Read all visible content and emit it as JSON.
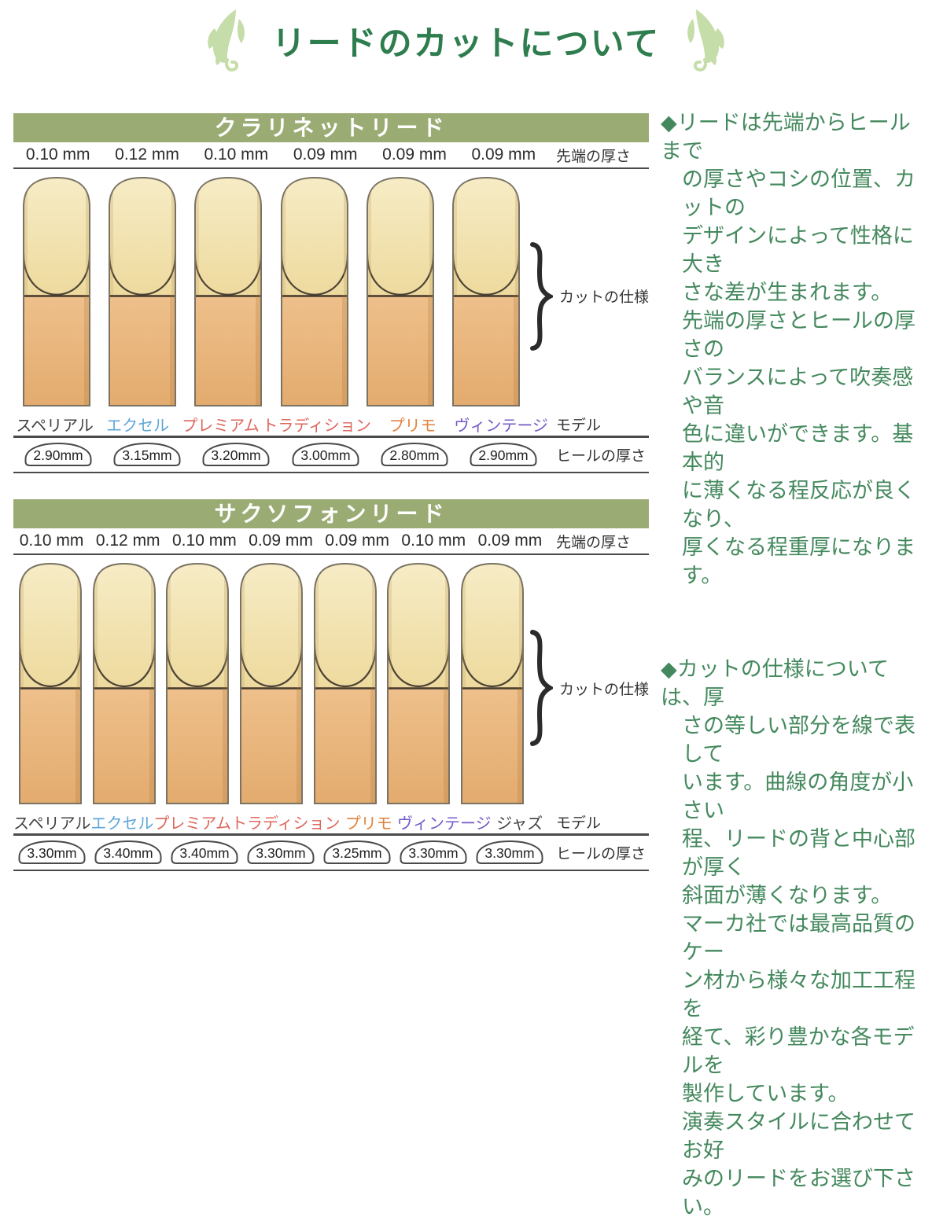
{
  "title": {
    "text": "リードのカットについて"
  },
  "colors": {
    "title_green": "#2e7d4f",
    "leaf_green": "#c5dda8",
    "header_bg": "#9aac73",
    "header_text": "#ffffff",
    "note_green": "#44895e",
    "text_dark": "#2b2b2b",
    "contour_red": "#e2574b",
    "model_superial": "#414141",
    "model_excel": "#5ea7d8",
    "model_premium": "#dd675c",
    "model_tradition": "#dd675c",
    "model_primo": "#e2823d",
    "model_vintage": "#7559c8",
    "model_jazz": "#414141"
  },
  "labels": {
    "tip_thickness": "先端の厚さ",
    "cut_spec": "カットの仕様",
    "model": "モデル",
    "heel_thickness": "ヒールの厚さ"
  },
  "sections": [
    {
      "id": "clarinet",
      "header": "クラリネットリード",
      "reeds": [
        {
          "tip": "0.10 mm",
          "model": "スペリアル",
          "model_color": "#414141",
          "heel": "2.90mm"
        },
        {
          "tip": "0.12 mm",
          "model": "エクセル",
          "model_color": "#5ea7d8",
          "heel": "3.15mm"
        },
        {
          "tip": "0.10 mm",
          "model": "プレミアム",
          "model_color": "#dd675c",
          "heel": "3.20mm"
        },
        {
          "tip": "0.09 mm",
          "model": "トラディション",
          "model_color": "#dd675c",
          "heel": "3.00mm"
        },
        {
          "tip": "0.09 mm",
          "model": "プリモ",
          "model_color": "#e2823d",
          "heel": "2.80mm"
        },
        {
          "tip": "0.09 mm",
          "model": "ヴィンテージ",
          "model_color": "#7559c8",
          "heel": "2.90mm"
        }
      ]
    },
    {
      "id": "saxophone",
      "header": "サクソフォンリード",
      "reeds": [
        {
          "tip": "0.10 mm",
          "model": "スペリアル",
          "model_color": "#414141",
          "heel": "3.30mm"
        },
        {
          "tip": "0.12 mm",
          "model": "エクセル",
          "model_color": "#5ea7d8",
          "heel": "3.40mm"
        },
        {
          "tip": "0.10 mm",
          "model": "プレミアム",
          "model_color": "#dd675c",
          "heel": "3.40mm"
        },
        {
          "tip": "0.09 mm",
          "model": "トラディション",
          "model_color": "#dd675c",
          "heel": "3.30mm"
        },
        {
          "tip": "0.09 mm",
          "model": "プリモ",
          "model_color": "#e2823d",
          "heel": "3.25mm"
        },
        {
          "tip": "0.10 mm",
          "model": "ヴィンテージ",
          "model_color": "#7559c8",
          "heel": "3.30mm"
        },
        {
          "tip": "0.09 mm",
          "model": "ジャズ",
          "model_color": "#414141",
          "heel": "3.30mm"
        }
      ]
    }
  ],
  "notes": [
    {
      "lines": [
        "◆リードは先端からヒールまで",
        "の厚さやコシの位置、カットの",
        "デザインによって性格に大き",
        "さな差が生まれます。",
        "先端の厚さとヒールの厚さの",
        "バランスによって吹奏感や音",
        "色に違いができます。基本的",
        "に薄くなる程反応が良くなり、",
        "厚くなる程重厚になります。"
      ]
    },
    {
      "lines": [
        "◆カットの仕様については、厚",
        "さの等しい部分を線で表して",
        "います。曲線の角度が小さい",
        "程、リードの背と中心部が厚く",
        "斜面が薄くなります。",
        "マーカ社では最高品質のケー",
        "ン材から様々な加工工程を",
        "経て、彩り豊かな各モデルを",
        "製作しています。",
        "演奏スタイルに合わせてお好",
        "みのリードをお選び下さい。"
      ]
    }
  ]
}
